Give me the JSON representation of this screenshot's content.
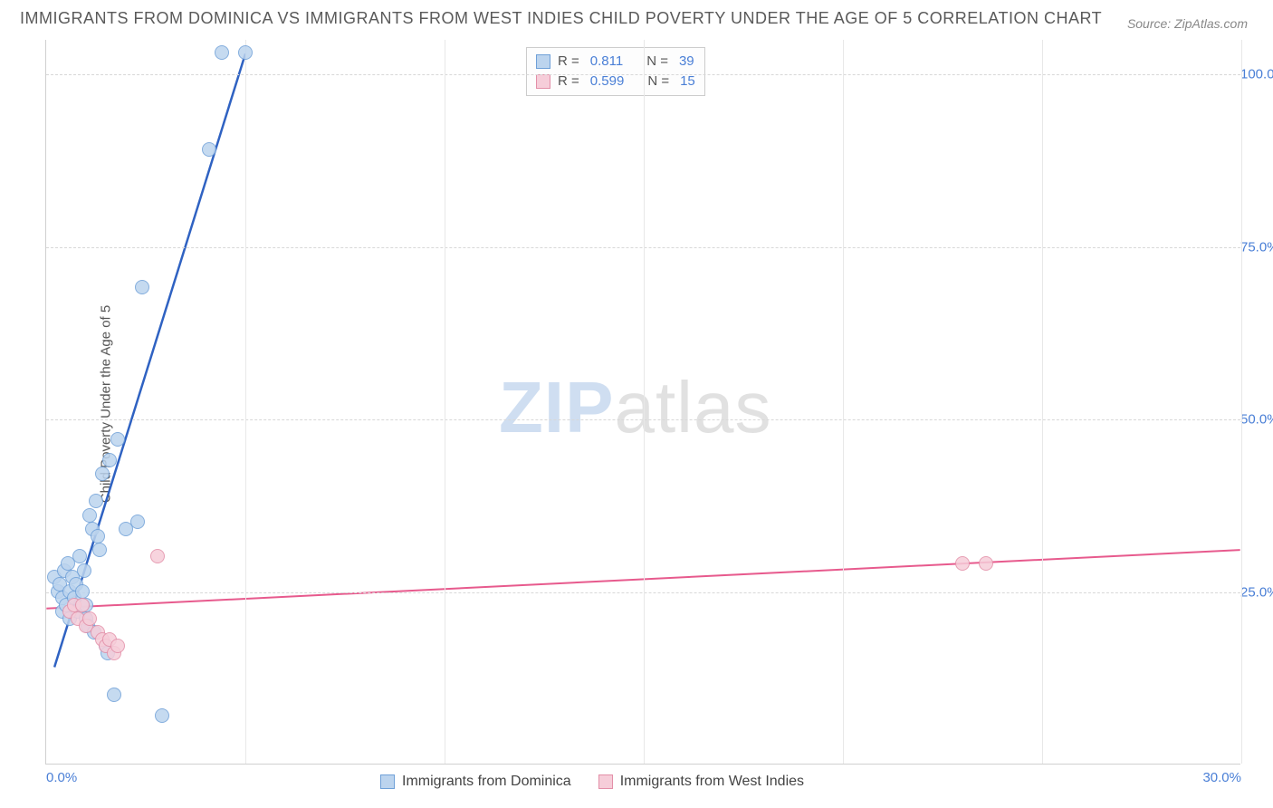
{
  "title": "IMMIGRANTS FROM DOMINICA VS IMMIGRANTS FROM WEST INDIES CHILD POVERTY UNDER THE AGE OF 5 CORRELATION CHART",
  "source_label": "Source:",
  "source_value": "ZipAtlas.com",
  "ylabel": "Child Poverty Under the Age of 5",
  "watermark_zip": "ZIP",
  "watermark_atlas": "atlas",
  "chart": {
    "type": "scatter",
    "xlim": [
      0,
      30
    ],
    "ylim": [
      0,
      105
    ],
    "xticks": [
      {
        "v": 0,
        "label": "0.0%"
      },
      {
        "v": 30,
        "label": "30.0%"
      }
    ],
    "yticks": [
      {
        "v": 25,
        "label": "25.0%"
      },
      {
        "v": 50,
        "label": "50.0%"
      },
      {
        "v": 75,
        "label": "75.0%"
      },
      {
        "v": 100,
        "label": "100.0%"
      }
    ],
    "vgrid_count": 6,
    "background_color": "#ffffff",
    "grid_color": "#d8d8d8",
    "marker_radius": 8,
    "marker_stroke": 1,
    "series": [
      {
        "name": "Immigrants from Dominica",
        "color_fill": "#bcd4ee",
        "color_stroke": "#6fa0d8",
        "line_color": "#2f62c2",
        "line_width": 2.5,
        "R": "0.811",
        "N": "39",
        "trend": {
          "x1": 0.2,
          "y1": 14,
          "x2": 5.0,
          "y2": 103
        },
        "points": [
          {
            "x": 0.2,
            "y": 27
          },
          {
            "x": 0.3,
            "y": 25
          },
          {
            "x": 0.35,
            "y": 26
          },
          {
            "x": 0.4,
            "y": 24
          },
          {
            "x": 0.4,
            "y": 22
          },
          {
            "x": 0.45,
            "y": 28
          },
          {
            "x": 0.5,
            "y": 23
          },
          {
            "x": 0.55,
            "y": 29
          },
          {
            "x": 0.6,
            "y": 25
          },
          {
            "x": 0.6,
            "y": 21
          },
          {
            "x": 0.65,
            "y": 27
          },
          {
            "x": 0.7,
            "y": 24
          },
          {
            "x": 0.75,
            "y": 26
          },
          {
            "x": 0.8,
            "y": 22
          },
          {
            "x": 0.85,
            "y": 30
          },
          {
            "x": 0.9,
            "y": 25
          },
          {
            "x": 0.95,
            "y": 28
          },
          {
            "x": 1.0,
            "y": 23
          },
          {
            "x": 1.0,
            "y": 21
          },
          {
            "x": 1.05,
            "y": 20
          },
          {
            "x": 1.1,
            "y": 36
          },
          {
            "x": 1.15,
            "y": 34
          },
          {
            "x": 1.2,
            "y": 19
          },
          {
            "x": 1.25,
            "y": 38
          },
          {
            "x": 1.3,
            "y": 33
          },
          {
            "x": 1.35,
            "y": 31
          },
          {
            "x": 1.4,
            "y": 42
          },
          {
            "x": 1.5,
            "y": 17
          },
          {
            "x": 1.55,
            "y": 16
          },
          {
            "x": 1.6,
            "y": 44
          },
          {
            "x": 1.7,
            "y": 10
          },
          {
            "x": 1.8,
            "y": 47
          },
          {
            "x": 2.0,
            "y": 34
          },
          {
            "x": 2.3,
            "y": 35
          },
          {
            "x": 2.4,
            "y": 69
          },
          {
            "x": 2.9,
            "y": 7
          },
          {
            "x": 4.1,
            "y": 89
          },
          {
            "x": 4.4,
            "y": 103
          },
          {
            "x": 5.0,
            "y": 103
          }
        ]
      },
      {
        "name": "Immigrants from West Indies",
        "color_fill": "#f6cdd9",
        "color_stroke": "#e38fa8",
        "line_color": "#e75a8d",
        "line_width": 2,
        "R": "0.599",
        "N": "15",
        "trend": {
          "x1": 0,
          "y1": 22.5,
          "x2": 30,
          "y2": 31
        },
        "points": [
          {
            "x": 0.6,
            "y": 22
          },
          {
            "x": 0.7,
            "y": 23
          },
          {
            "x": 0.8,
            "y": 21
          },
          {
            "x": 0.9,
            "y": 23
          },
          {
            "x": 1.0,
            "y": 20
          },
          {
            "x": 1.1,
            "y": 21
          },
          {
            "x": 1.3,
            "y": 19
          },
          {
            "x": 1.4,
            "y": 18
          },
          {
            "x": 1.5,
            "y": 17
          },
          {
            "x": 1.6,
            "y": 18
          },
          {
            "x": 1.7,
            "y": 16
          },
          {
            "x": 1.8,
            "y": 17
          },
          {
            "x": 2.8,
            "y": 30
          },
          {
            "x": 23.0,
            "y": 29
          },
          {
            "x": 23.6,
            "y": 29
          }
        ]
      }
    ]
  },
  "legend_top": {
    "R_label": "R  =",
    "N_label": "N  ="
  },
  "legend_bottom": {
    "items": [
      "Immigrants from Dominica",
      "Immigrants from West Indies"
    ]
  }
}
